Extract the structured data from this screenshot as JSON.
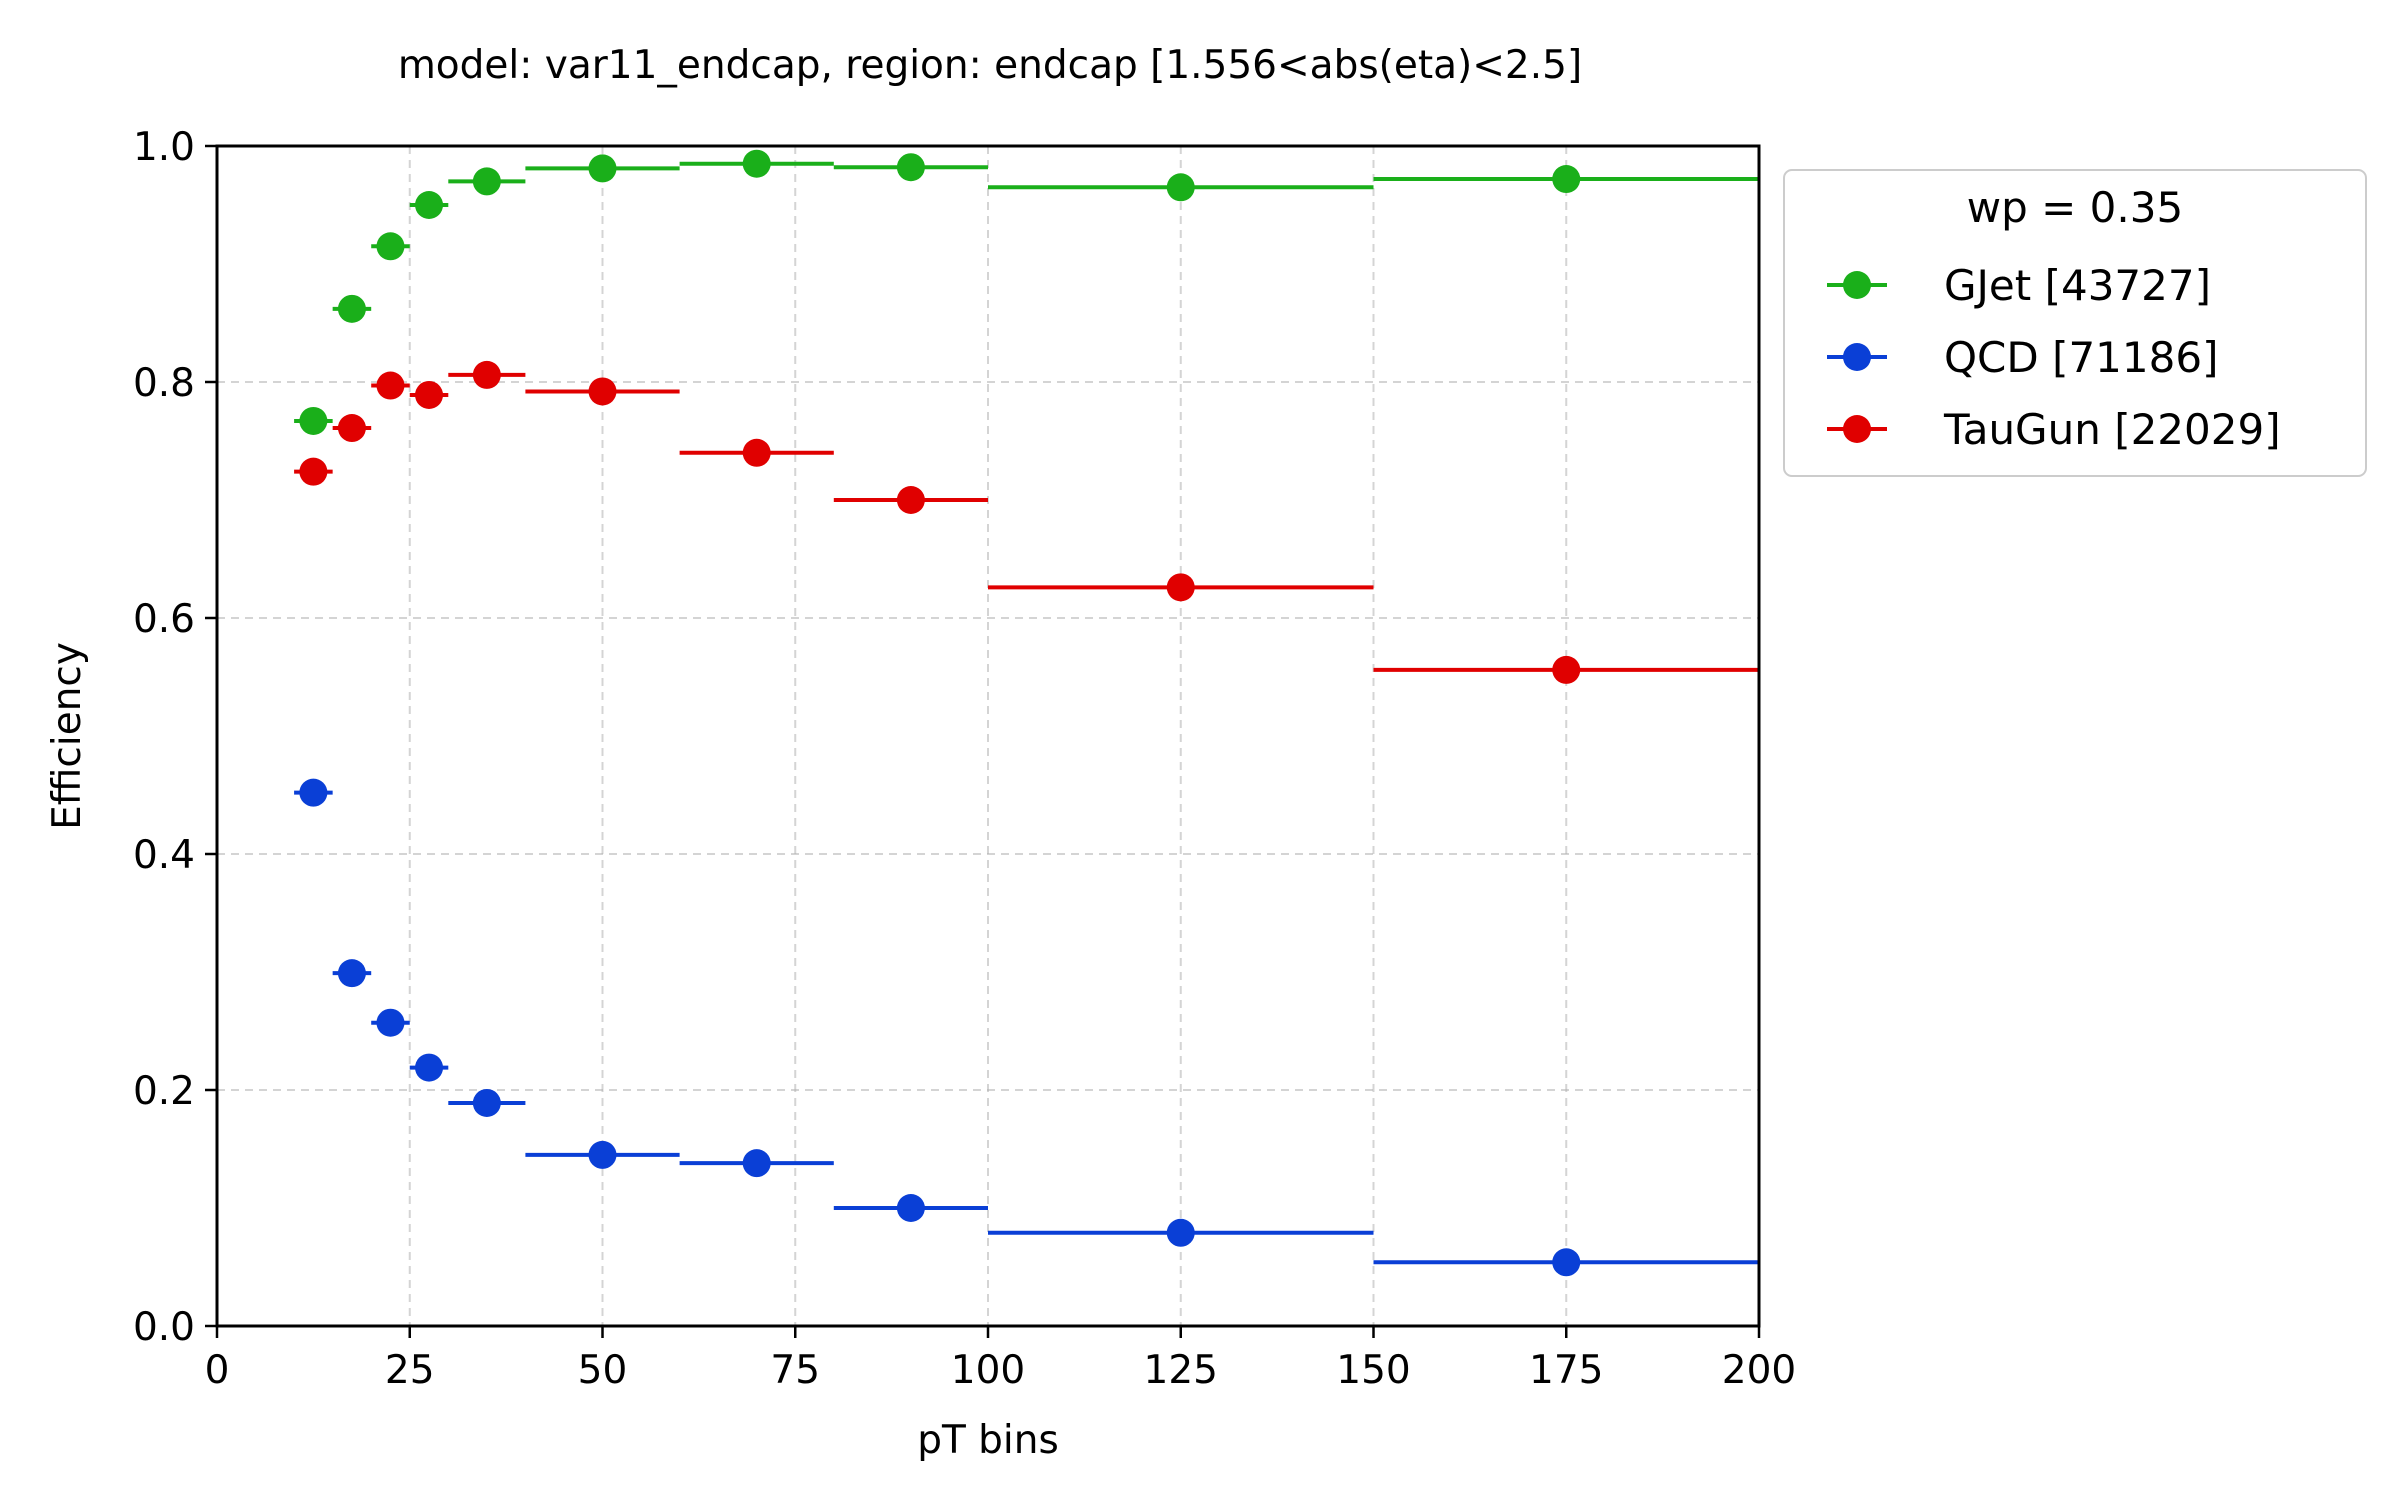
{
  "chart_data": {
    "type": "scatter",
    "title": "model: var11_endcap, region: endcap [1.556<abs(eta)<2.5]",
    "xlabel": "pT bins",
    "ylabel": "Efficiency",
    "xlim": [
      0,
      200
    ],
    "ylim": [
      0.0,
      1.0
    ],
    "xticks": [
      "0",
      "25",
      "50",
      "75",
      "100",
      "125",
      "150",
      "175",
      "200"
    ],
    "xtick_values": [
      0,
      25,
      50,
      75,
      100,
      125,
      150,
      175,
      200
    ],
    "yticks": [
      "0.0",
      "0.2",
      "0.4",
      "0.6",
      "0.8",
      "1.0"
    ],
    "ytick_values": [
      0.0,
      0.2,
      0.4,
      0.6,
      0.8,
      1.0
    ],
    "grid": true,
    "legend": {
      "title": "wp = 0.35",
      "placement": "outside-upper-right"
    },
    "bins": [
      [
        10,
        15
      ],
      [
        15,
        20
      ],
      [
        20,
        25
      ],
      [
        25,
        30
      ],
      [
        30,
        40
      ],
      [
        40,
        60
      ],
      [
        60,
        80
      ],
      [
        80,
        100
      ],
      [
        100,
        150
      ],
      [
        150,
        200
      ]
    ],
    "x": [
      12.5,
      17.5,
      22.5,
      27.5,
      35,
      50,
      70,
      90,
      125,
      175
    ],
    "series": [
      {
        "name": "GJet [43727]",
        "color": "#1aaf1a",
        "values": [
          0.767,
          0.862,
          0.915,
          0.95,
          0.97,
          0.981,
          0.985,
          0.982,
          0.965,
          0.972
        ]
      },
      {
        "name": "QCD [71186]",
        "color": "#0a3fd6",
        "values": [
          0.452,
          0.299,
          0.257,
          0.219,
          0.189,
          0.145,
          0.138,
          0.1,
          0.079,
          0.054
        ]
      },
      {
        "name": "TauGun [22029]",
        "color": "#e00000",
        "values": [
          0.724,
          0.761,
          0.797,
          0.789,
          0.806,
          0.792,
          0.74,
          0.7,
          0.626,
          0.556
        ]
      }
    ]
  }
}
